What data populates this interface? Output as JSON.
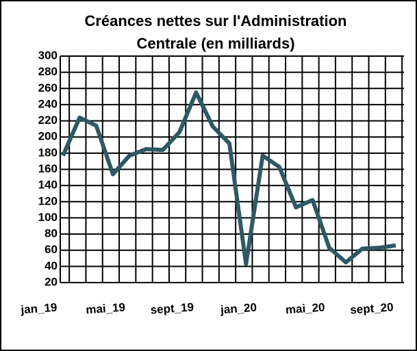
{
  "chart_data": {
    "type": "line",
    "title": [
      "Créances nettes sur l'Administration",
      "Centrale (en milliards)"
    ],
    "categories": [
      "jan_19",
      null,
      null,
      null,
      "mai_19",
      null,
      null,
      null,
      "sept_19",
      null,
      null,
      null,
      "jan_20",
      null,
      null,
      null,
      "mai_20",
      null,
      null,
      null,
      "sept_20"
    ],
    "series": [
      {
        "name": "Créances nettes",
        "color": "#2e5865",
        "values": [
          177,
          224,
          214,
          154,
          177,
          185,
          184,
          206,
          255,
          213,
          192,
          43,
          177,
          163,
          113,
          122,
          63,
          45,
          62,
          63,
          66
        ]
      }
    ],
    "ylim": [
      20,
      300
    ],
    "yticks": [
      20,
      40,
      60,
      80,
      100,
      120,
      140,
      160,
      180,
      200,
      220,
      240,
      260,
      280,
      300
    ],
    "grid": true
  }
}
